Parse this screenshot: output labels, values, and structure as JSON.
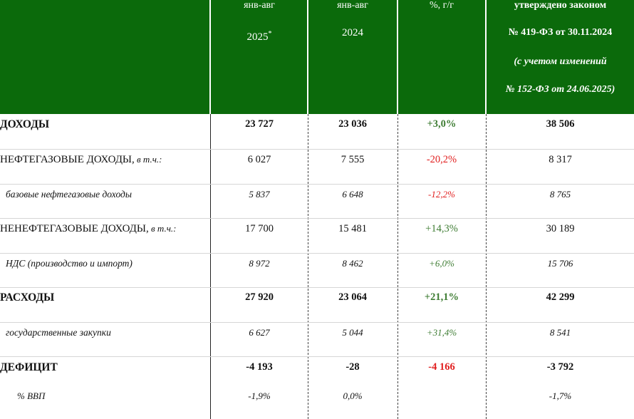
{
  "header": {
    "col1": {
      "line1": "янв-авг",
      "line2": "2025",
      "sup": "*"
    },
    "col2": {
      "line1": "янв-авг",
      "line2": "2024"
    },
    "col3": {
      "line1": "%, г/г"
    },
    "col4": {
      "line1": "утверждено законом",
      "line2": "№ 419-ФЗ от 30.11.2024",
      "line3": "(с учетом изменений",
      "line4": "№ 152-ФЗ от 24.06.2025)"
    }
  },
  "rows": [
    {
      "label": "ДОХОДЫ",
      "suffix": "",
      "v1": "23 727",
      "v2": "23 036",
      "v3": "+3,0%",
      "v4": "38 506"
    },
    {
      "label": "НЕФТЕГАЗОВЫЕ ДОХОДЫ,",
      "suffix": " в т.ч.:",
      "v1": "6 027",
      "v2": "7 555",
      "v3": "-20,2%",
      "v4": "8 317"
    },
    {
      "label": "базовые нефтегазовые доходы",
      "suffix": "",
      "v1": "5 837",
      "v2": "6 648",
      "v3": "-12,2%",
      "v4": "8 765"
    },
    {
      "label": "НЕНЕФТЕГАЗОВЫЕ ДОХОДЫ,",
      "suffix": " в т.ч.:",
      "v1": "17 700",
      "v2": "15 481",
      "v3": "+14,3%",
      "v4": "30 189"
    },
    {
      "label": "НДС (производство и импорт)",
      "suffix": "",
      "v1": "8 972",
      "v2": "8 462",
      "v3": "+6,0%",
      "v4": "15 706"
    },
    {
      "label": "РАСХОДЫ",
      "suffix": "",
      "v1": "27 920",
      "v2": "23 064",
      "v3": "+21,1%",
      "v4": "42 299"
    },
    {
      "label": "государственные закупки",
      "suffix": "",
      "v1": "6 627",
      "v2": "5 044",
      "v3": "+31,4%",
      "v4": "8 541"
    },
    {
      "label": "ДЕФИЦИТ",
      "suffix": "",
      "v1": "-4 193",
      "v2": "-28",
      "v3": "-4 166",
      "v4": "-3 792"
    },
    {
      "label": "% ВВП",
      "suffix": "",
      "v1": "-1,9%",
      "v2": "0,0%",
      "v3": "",
      "v4": "-1,7%"
    }
  ],
  "colors": {
    "header_bg": "#0b6a0b",
    "positive": "#3f7d34",
    "negative": "#e12020"
  }
}
